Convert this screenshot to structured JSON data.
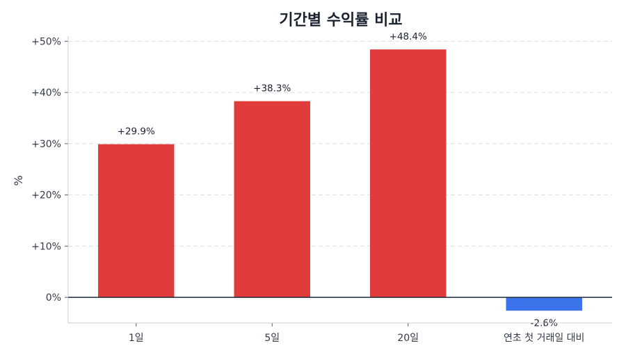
{
  "chart_data": {
    "type": "bar",
    "title": "기간별 수익률 비교",
    "xlabel": "",
    "ylabel": "%",
    "categories": [
      "1일",
      "5일",
      "20일",
      "연초 첫 거래일 대비"
    ],
    "values": [
      29.9,
      38.3,
      48.4,
      -2.6
    ],
    "value_labels": [
      "+29.9%",
      "+38.3%",
      "+48.4%",
      "-2.6%"
    ],
    "ylim": [
      -5,
      51
    ],
    "yticks": [
      0,
      10,
      20,
      30,
      40,
      50
    ],
    "ytick_labels": [
      "0%",
      "+10%",
      "+20%",
      "+30%",
      "+40%",
      "+50%"
    ],
    "grid": true,
    "legend": "none",
    "colors": {
      "positive": "#e03c3c",
      "negative": "#3b73ea",
      "zero_line": "#1f2a3a",
      "grid": "#dcdfe4",
      "axis": "#c8ccd2"
    }
  }
}
